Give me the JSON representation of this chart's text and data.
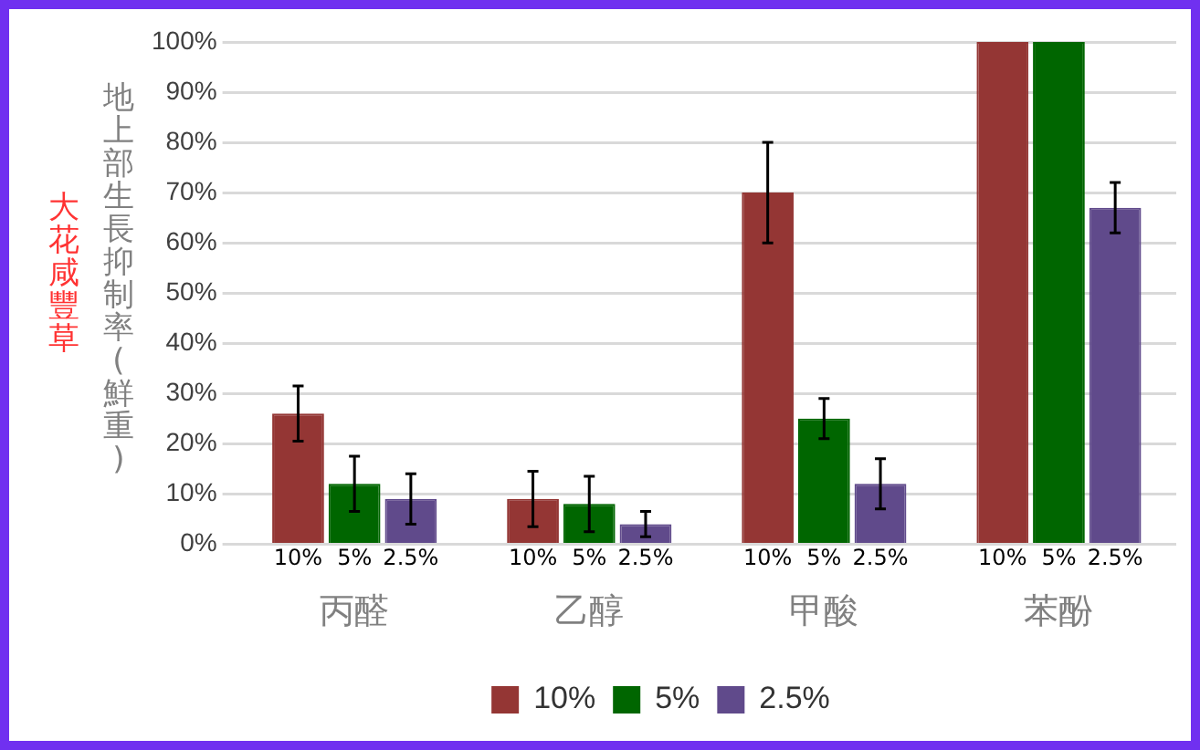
{
  "chart_data": {
    "type": "bar",
    "ylabel": "地上部生長抑制率(鮮重)",
    "annotations": [
      "大花咸豐草"
    ],
    "categories": [
      "丙醛",
      "乙醇",
      "甲酸",
      "苯酚"
    ],
    "series": [
      {
        "name": "10%",
        "color": "#943634",
        "values": [
          26,
          9,
          70,
          100
        ],
        "errors": [
          5.5,
          5.5,
          10,
          null
        ]
      },
      {
        "name": "5%",
        "color": "#006600",
        "values": [
          12,
          8,
          25,
          100
        ],
        "errors": [
          5.5,
          5.5,
          4,
          null
        ]
      },
      {
        "name": "2.5%",
        "color": "#604a8b",
        "values": [
          9,
          4,
          12,
          67
        ],
        "errors": [
          5,
          2.5,
          5,
          5
        ]
      }
    ],
    "ylim": [
      0,
      100
    ],
    "yticks": [
      {
        "value": 0,
        "label": "0%"
      },
      {
        "value": 10,
        "label": "10%"
      },
      {
        "value": 20,
        "label": "20%"
      },
      {
        "value": 30,
        "label": "30%"
      },
      {
        "value": 40,
        "label": "40%"
      },
      {
        "value": 50,
        "label": "50%"
      },
      {
        "value": 60,
        "label": "60%"
      },
      {
        "value": 70,
        "label": "70%"
      },
      {
        "value": 80,
        "label": "80%"
      },
      {
        "value": 90,
        "label": "90%"
      },
      {
        "value": 100,
        "label": "100%"
      }
    ],
    "grid": "y",
    "legend": "bottom"
  }
}
